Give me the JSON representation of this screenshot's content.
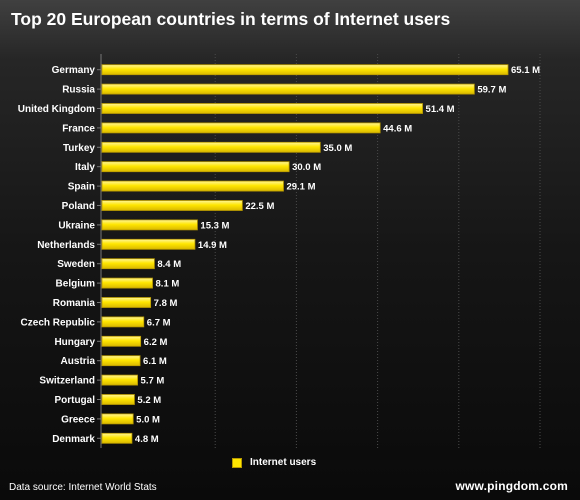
{
  "chart_data": {
    "type": "bar",
    "orientation": "horizontal",
    "title": "Top 20 European countries in terms of Internet users",
    "categories": [
      "Germany",
      "Russia",
      "United Kingdom",
      "France",
      "Turkey",
      "Italy",
      "Spain",
      "Poland",
      "Ukraine",
      "Netherlands",
      "Sweden",
      "Belgium",
      "Romania",
      "Czech Republic",
      "Hungary",
      "Austria",
      "Switzerland",
      "Portugal",
      "Greece",
      "Denmark"
    ],
    "series": [
      {
        "name": "Internet users",
        "values": [
          65.1,
          59.7,
          51.4,
          44.6,
          35.0,
          30.0,
          29.1,
          22.5,
          15.3,
          14.9,
          8.4,
          8.1,
          7.8,
          6.7,
          6.2,
          6.1,
          5.7,
          5.2,
          5.0,
          4.8
        ],
        "labels": [
          "65.1 M",
          "59.7 M",
          "51.4 M",
          "44.6 M",
          "35.0 M",
          "30.0 M",
          "29.1 M",
          "22.5 M",
          "15.3 M",
          "14.9 M",
          "8.4 M",
          "8.1 M",
          "7.8 M",
          "6.7 M",
          "6.2 M",
          "6.1 M",
          "5.7 M",
          "5.2 M",
          "5.0 M",
          "4.8 M"
        ]
      }
    ],
    "value_unit": "M",
    "xlim": [
      0,
      65.1
    ],
    "xlabel": "",
    "ylabel": "",
    "grid": true,
    "legend_position": "bottom-center",
    "colors": {
      "bar": "#ffe600",
      "bar_edge": "#b89a00",
      "background": "#1c1c1c",
      "text": "#ffffff"
    }
  },
  "footer": {
    "source": "Data source: Internet World Stats",
    "brand": "www.pingdom.com"
  }
}
